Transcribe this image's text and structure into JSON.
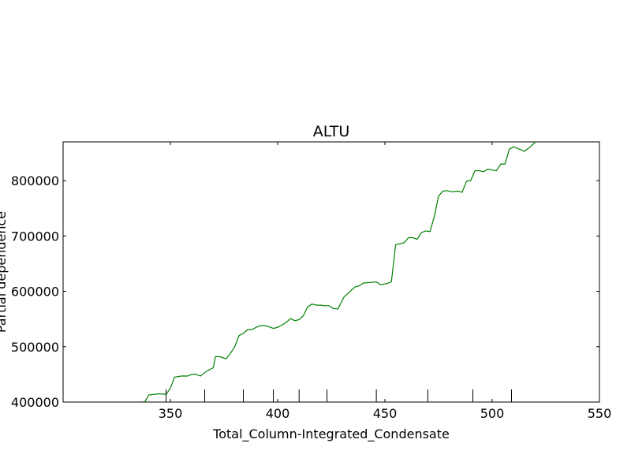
{
  "chart_data": {
    "type": "line",
    "title": "ALTU",
    "xlabel": "Total_Column-Integrated_Condensate",
    "ylabel": "Partial dependence",
    "xlim": [
      300,
      550
    ],
    "ylim": [
      400000,
      870000
    ],
    "xticks": [
      350,
      400,
      450,
      500,
      550
    ],
    "yticks": [
      400000,
      500000,
      600000,
      700000,
      800000
    ],
    "grid": false,
    "line_color": "#008000",
    "deciles": [
      348,
      366,
      384,
      398,
      410,
      423,
      446,
      470,
      491,
      509
    ],
    "series": [
      {
        "x": [
          300,
          320,
          333,
          336,
          338,
          340,
          345,
          348,
          350,
          352,
          355,
          358,
          360,
          362,
          364,
          367,
          370,
          371,
          373,
          376,
          378,
          380,
          382,
          384,
          386,
          388,
          390,
          392,
          394,
          396,
          398,
          400,
          402,
          404,
          406,
          408,
          410,
          412,
          414,
          416,
          418,
          420,
          422,
          424,
          426,
          428,
          431,
          433,
          436,
          438,
          440,
          443,
          446,
          448,
          451,
          453,
          455,
          457,
          459,
          461,
          463,
          465,
          467,
          469,
          471,
          473,
          475,
          477,
          479,
          481,
          484,
          486,
          488,
          490,
          492,
          494,
          496,
          498,
          500,
          502,
          504,
          506,
          508,
          510,
          512,
          515,
          518,
          520
        ],
        "values": [
          385000,
          390000,
          398000,
          400000,
          400000,
          413000,
          415000,
          414000,
          425000,
          445000,
          447000,
          447000,
          450000,
          450000,
          447000,
          456000,
          462000,
          482000,
          482000,
          478000,
          488000,
          500000,
          520000,
          524000,
          531000,
          531000,
          535000,
          538000,
          538000,
          536000,
          533000,
          535000,
          539000,
          544000,
          551000,
          547000,
          549000,
          556000,
          572000,
          577000,
          575000,
          575000,
          574000,
          574000,
          569000,
          568000,
          590000,
          597000,
          608000,
          610000,
          615000,
          616000,
          617000,
          612000,
          614000,
          617000,
          684000,
          686000,
          688000,
          697000,
          697000,
          694000,
          706000,
          709000,
          708000,
          735000,
          772000,
          781000,
          782000,
          780000,
          781000,
          779000,
          799000,
          800000,
          818000,
          818000,
          816000,
          821000,
          819000,
          818000,
          830000,
          830000,
          857000,
          861000,
          858000,
          853000,
          862000,
          869000
        ]
      }
    ]
  }
}
